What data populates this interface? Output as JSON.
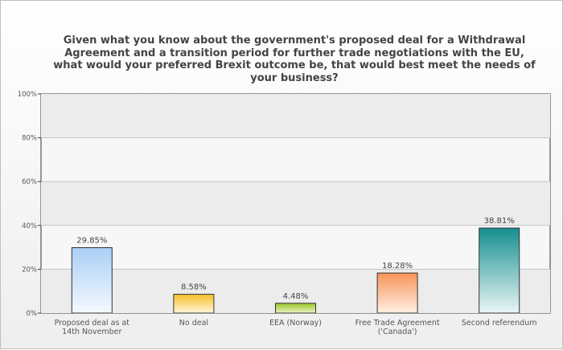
{
  "chart_data": {
    "type": "bar",
    "title": "Given what you know about the government's proposed deal for a Withdrawal Agreement and a transition period for further trade negotiations with the EU, what would your preferred Brexit outcome be, that would best meet the needs of your business?",
    "xlabel": "",
    "ylabel": "",
    "ylim": [
      0,
      100
    ],
    "yticks": [
      "0%",
      "20%",
      "40%",
      "60%",
      "80%",
      "100%"
    ],
    "grid": true,
    "categories": [
      [
        "Proposed deal as at",
        "14th November"
      ],
      [
        "No deal"
      ],
      [
        "EEA (Norway)"
      ],
      [
        "Free Trade Agreement",
        "('Canada')"
      ],
      [
        "Second referendum"
      ]
    ],
    "values": [
      29.85,
      8.58,
      4.48,
      18.28,
      38.81
    ],
    "data_labels": [
      "29.85%",
      "8.58%",
      "4.48%",
      "18.28%",
      "38.81%"
    ],
    "colors": [
      [
        "#a9cff5",
        "#f5f9ff"
      ],
      [
        "#f5c02a",
        "#fff6d8"
      ],
      [
        "#9bc326",
        "#eaf4c4"
      ],
      [
        "#f7945a",
        "#fff0e4"
      ],
      [
        "#168f8f",
        "#eaf5f5"
      ]
    ]
  }
}
